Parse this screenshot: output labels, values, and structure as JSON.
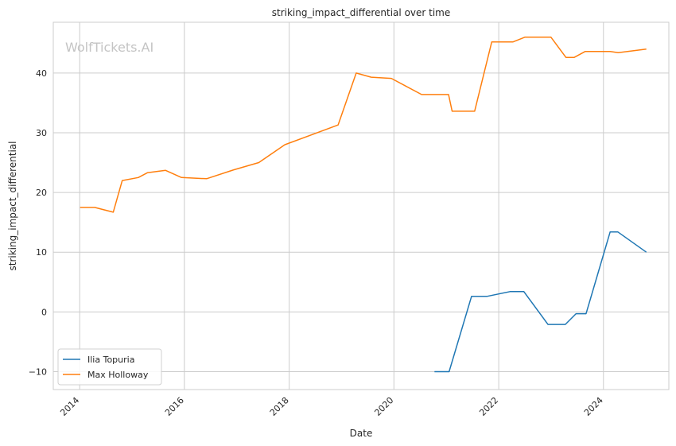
{
  "chart_data": {
    "type": "line",
    "title": "striking_impact_differential over time",
    "xlabel": "Date",
    "ylabel": "striking_impact_differential",
    "watermark": "WolfTickets.AI",
    "xlim": [
      "2013-07-01",
      "2025-04-01"
    ],
    "ylim": [
      -13,
      48.5
    ],
    "x_ticks": [
      "2014",
      "2016",
      "2018",
      "2020",
      "2022",
      "2024"
    ],
    "y_ticks": [
      -10,
      0,
      10,
      20,
      30,
      40
    ],
    "grid": true,
    "legend_position": "lower-left",
    "series": [
      {
        "name": "Ilia Topuria",
        "color": "#1f77b4",
        "points": [
          [
            "2020-10-10",
            -10.0
          ],
          [
            "2021-01-20",
            -10.0
          ],
          [
            "2021-06-25",
            2.6
          ],
          [
            "2021-10-10",
            2.6
          ],
          [
            "2022-03-20",
            3.4
          ],
          [
            "2022-06-25",
            3.4
          ],
          [
            "2022-12-10",
            -2.1
          ],
          [
            "2023-04-10",
            -2.1
          ],
          [
            "2023-06-24",
            -0.3
          ],
          [
            "2023-09-02",
            -0.3
          ],
          [
            "2024-02-17",
            13.4
          ],
          [
            "2024-04-10",
            13.4
          ],
          [
            "2024-10-26",
            10.0
          ]
        ]
      },
      {
        "name": "Max Holloway",
        "color": "#ff7f0e",
        "points": [
          [
            "2014-01-04",
            17.5
          ],
          [
            "2014-04-16",
            17.5
          ],
          [
            "2014-08-23",
            16.7
          ],
          [
            "2014-10-25",
            22.0
          ],
          [
            "2015-02-14",
            22.5
          ],
          [
            "2015-04-18",
            23.3
          ],
          [
            "2015-08-23",
            23.7
          ],
          [
            "2015-12-12",
            22.5
          ],
          [
            "2016-06-04",
            22.3
          ],
          [
            "2016-12-10",
            23.8
          ],
          [
            "2017-06-03",
            25.0
          ],
          [
            "2017-12-02",
            28.0
          ],
          [
            "2018-12-08",
            31.3
          ],
          [
            "2019-04-13",
            40.0
          ],
          [
            "2019-07-27",
            39.3
          ],
          [
            "2019-12-14",
            39.1
          ],
          [
            "2020-07-12",
            36.4
          ],
          [
            "2021-01-16",
            36.4
          ],
          [
            "2021-02-10",
            33.6
          ],
          [
            "2021-07-17",
            33.6
          ],
          [
            "2021-11-13",
            45.2
          ],
          [
            "2022-04-09",
            45.2
          ],
          [
            "2022-07-02",
            46.0
          ],
          [
            "2022-12-31",
            46.0
          ],
          [
            "2023-04-15",
            42.6
          ],
          [
            "2023-06-10",
            42.6
          ],
          [
            "2023-08-26",
            43.6
          ],
          [
            "2024-02-17",
            43.6
          ],
          [
            "2024-04-13",
            43.4
          ],
          [
            "2024-10-26",
            44.0
          ]
        ]
      }
    ]
  }
}
